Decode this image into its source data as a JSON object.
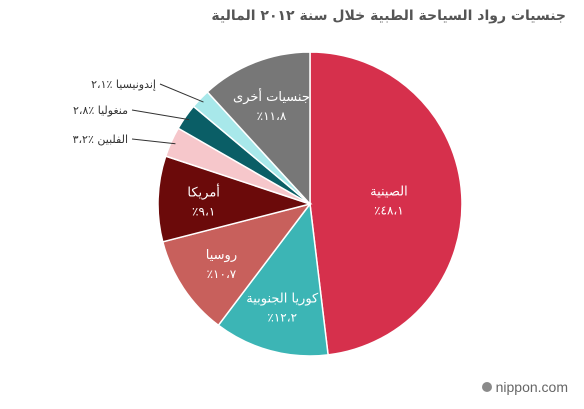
{
  "chart_data": {
    "type": "pie",
    "title": "جنسيات رواد السياحة الطبية خلال سنة ٢٠١٢ المالية",
    "slices": [
      {
        "name": "الصينية",
        "value": 48.1,
        "value_label": "٪٤٨،١",
        "color": "#d6304c",
        "label_position": "inside"
      },
      {
        "name": "كوريا الجنوبية",
        "value": 12.2,
        "value_label": "٪١٢،٢",
        "color": "#3cb5b5",
        "label_position": "inside"
      },
      {
        "name": "روسيا",
        "value": 10.7,
        "value_label": "٪١٠،٧",
        "color": "#c8605c",
        "label_position": "inside"
      },
      {
        "name": "أمريكا",
        "value": 9.1,
        "value_label": "٪٩،١",
        "color": "#6b0a0a",
        "label_position": "inside"
      },
      {
        "name": "الفلبين",
        "value": 3.2,
        "value_label": "٪٣،٢",
        "color": "#f6c7cb",
        "label_position": "outside"
      },
      {
        "name": "منغوليا",
        "value": 2.8,
        "value_label": "٪٢،٨",
        "color": "#0a5e66",
        "label_position": "outside"
      },
      {
        "name": "إندونيسيا",
        "value": 2.1,
        "value_label": "٪٢،١",
        "color": "#a8e8ea",
        "label_position": "outside"
      },
      {
        "name": "جنسيات أخرى",
        "value": 11.8,
        "value_label": "٪١١،٨",
        "color": "#777777",
        "label_position": "inside"
      }
    ]
  },
  "watermark": {
    "brand": "nippon",
    "suffix": ".com"
  }
}
